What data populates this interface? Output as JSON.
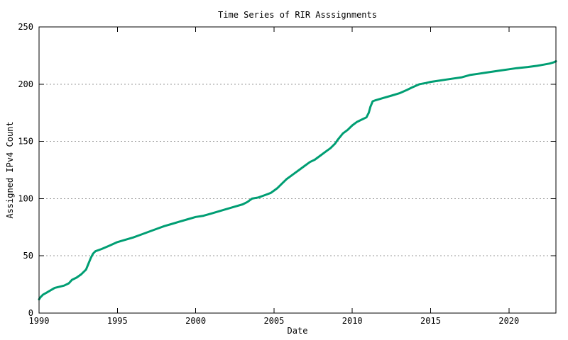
{
  "chart_data": {
    "type": "line",
    "title": "Time Series of RIR Asssignments",
    "xlabel": "Date",
    "ylabel": "Assigned IPv4 Count",
    "xlim": [
      1990,
      2023
    ],
    "ylim": [
      0,
      250
    ],
    "x_ticks": [
      1990,
      1995,
      2000,
      2005,
      2010,
      2015,
      2020
    ],
    "y_ticks": [
      0,
      50,
      100,
      150,
      200,
      250
    ],
    "grid": "horizontal-dashed-at-y-ticks",
    "legend": "none",
    "colors": {
      "line": "#009E73",
      "grid": "#9a9a9a",
      "border": "#000000",
      "background": "#ffffff",
      "text": "#000000"
    },
    "series": [
      {
        "name": "Assigned IPv4 Count",
        "points": [
          [
            1990.0,
            12
          ],
          [
            1990.1,
            14
          ],
          [
            1990.25,
            16
          ],
          [
            1990.5,
            18
          ],
          [
            1990.75,
            20
          ],
          [
            1991.0,
            22
          ],
          [
            1991.3,
            23
          ],
          [
            1991.6,
            24
          ],
          [
            1991.9,
            26
          ],
          [
            1992.1,
            29
          ],
          [
            1992.4,
            31
          ],
          [
            1992.7,
            34
          ],
          [
            1993.0,
            38
          ],
          [
            1993.15,
            43
          ],
          [
            1993.3,
            48
          ],
          [
            1993.45,
            52
          ],
          [
            1993.6,
            54
          ],
          [
            1994.0,
            56
          ],
          [
            1994.5,
            59
          ],
          [
            1995.0,
            62
          ],
          [
            1995.5,
            64
          ],
          [
            1996.0,
            66
          ],
          [
            1996.4,
            68
          ],
          [
            1996.8,
            70
          ],
          [
            1997.2,
            72
          ],
          [
            1997.6,
            74
          ],
          [
            1998.0,
            76
          ],
          [
            1998.5,
            78
          ],
          [
            1999.0,
            80
          ],
          [
            1999.5,
            82
          ],
          [
            2000.0,
            84
          ],
          [
            2000.5,
            85
          ],
          [
            2001.0,
            87
          ],
          [
            2001.5,
            89
          ],
          [
            2002.0,
            91
          ],
          [
            2002.5,
            93
          ],
          [
            2003.0,
            95
          ],
          [
            2003.3,
            97
          ],
          [
            2003.6,
            100
          ],
          [
            2004.0,
            101
          ],
          [
            2004.4,
            103
          ],
          [
            2004.8,
            105
          ],
          [
            2005.0,
            107
          ],
          [
            2005.2,
            109
          ],
          [
            2005.5,
            113
          ],
          [
            2005.8,
            117
          ],
          [
            2006.0,
            119
          ],
          [
            2006.3,
            122
          ],
          [
            2006.6,
            125
          ],
          [
            2007.0,
            129
          ],
          [
            2007.3,
            132
          ],
          [
            2007.6,
            134
          ],
          [
            2008.0,
            138
          ],
          [
            2008.3,
            141
          ],
          [
            2008.6,
            144
          ],
          [
            2008.9,
            148
          ],
          [
            2009.1,
            152
          ],
          [
            2009.4,
            157
          ],
          [
            2009.7,
            160
          ],
          [
            2010.0,
            164
          ],
          [
            2010.3,
            167
          ],
          [
            2010.6,
            169
          ],
          [
            2010.9,
            171
          ],
          [
            2011.05,
            175
          ],
          [
            2011.15,
            180
          ],
          [
            2011.3,
            185
          ],
          [
            2011.5,
            186
          ],
          [
            2012.0,
            188
          ],
          [
            2012.5,
            190
          ],
          [
            2013.0,
            192
          ],
          [
            2013.5,
            195
          ],
          [
            2013.8,
            197
          ],
          [
            2014.3,
            200
          ],
          [
            2014.7,
            201
          ],
          [
            2015.0,
            202
          ],
          [
            2015.5,
            203
          ],
          [
            2016.0,
            204
          ],
          [
            2016.5,
            205
          ],
          [
            2017.0,
            206
          ],
          [
            2017.5,
            208
          ],
          [
            2018.0,
            209
          ],
          [
            2018.5,
            210
          ],
          [
            2019.0,
            211
          ],
          [
            2019.5,
            212
          ],
          [
            2020.0,
            213
          ],
          [
            2020.5,
            214
          ],
          [
            2021.2,
            215
          ],
          [
            2021.8,
            216
          ],
          [
            2022.2,
            217
          ],
          [
            2022.6,
            218
          ],
          [
            2022.85,
            219
          ],
          [
            2023.0,
            220
          ]
        ]
      }
    ]
  }
}
